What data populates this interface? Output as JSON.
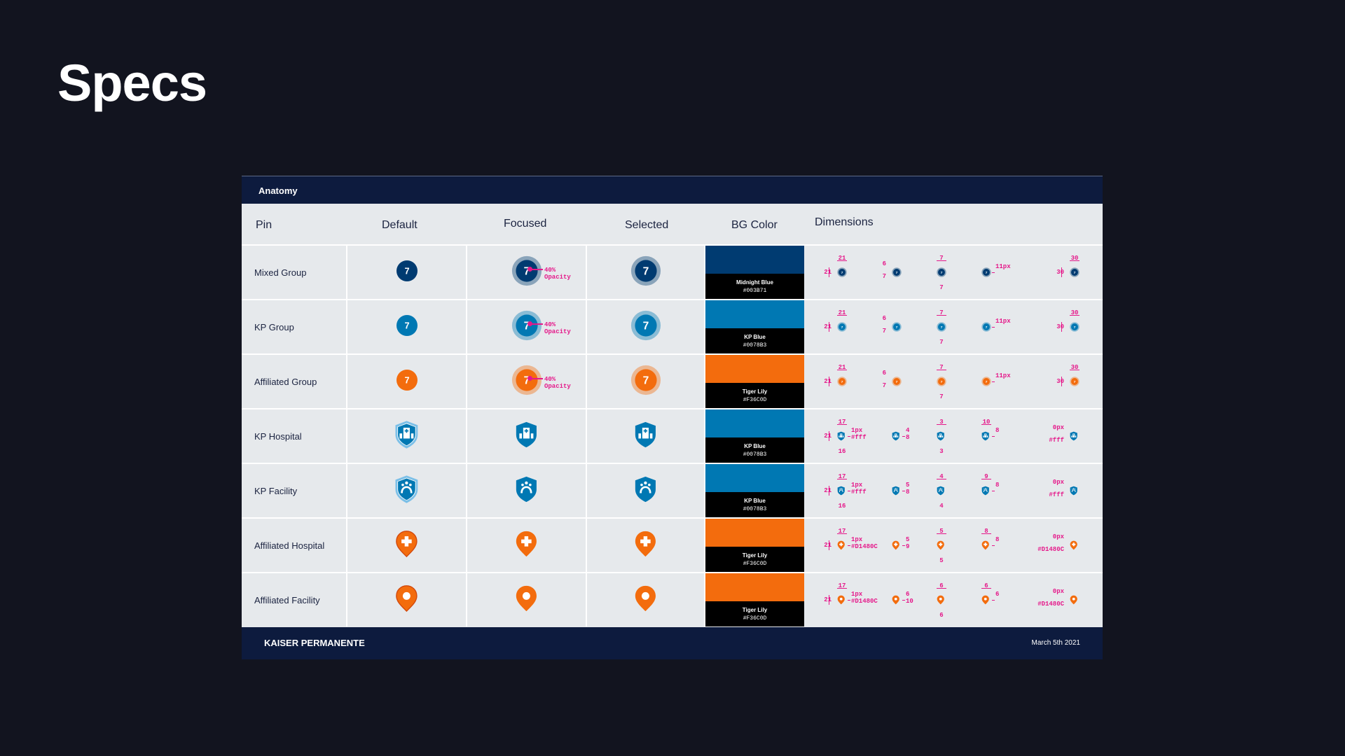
{
  "page_title": "Specs",
  "panel": {
    "header": "Anatomy",
    "columns": [
      "Pin",
      "Default",
      "Focused",
      "Selected",
      "BG Color",
      "Dimensions"
    ],
    "focus_annotation": [
      "40%",
      "Opacity"
    ]
  },
  "footer": {
    "brand": "KAISER PERMANENTE",
    "date": "March 5th 2021"
  },
  "colors": {
    "midnight": "#003B71",
    "kp_blue": "#0078B3",
    "tiger_lily": "#F36C0D",
    "annotation": "#E5198A"
  },
  "rows": [
    {
      "label": "Mixed Group",
      "icon": "group",
      "number": "7",
      "color": "#003B71",
      "swatch_name": "Midnight Blue",
      "swatch_hex": "#003B71",
      "dims": [
        {
          "t": "21",
          "l": "21"
        },
        {
          "l2": "6",
          "l3": "7"
        },
        {
          "t": "7",
          "b": "7"
        },
        {
          "r": "11px"
        },
        {
          "t": "30",
          "l": "30"
        }
      ]
    },
    {
      "label": "KP Group",
      "icon": "group",
      "number": "7",
      "color": "#0078B3",
      "swatch_name": "KP Blue",
      "swatch_hex": "#0078B3",
      "dims": [
        {
          "t": "21",
          "l": "21"
        },
        {
          "l2": "6",
          "l3": "7"
        },
        {
          "t": "7",
          "b": "7"
        },
        {
          "r": "11px"
        },
        {
          "t": "30",
          "l": "30"
        }
      ]
    },
    {
      "label": "Affiliated Group",
      "icon": "group",
      "number": "7",
      "color": "#F36C0D",
      "swatch_name": "Tiger Lily",
      "swatch_hex": "#F36C0D",
      "dims": [
        {
          "t": "21",
          "l": "21"
        },
        {
          "l2": "6",
          "l3": "7"
        },
        {
          "t": "7",
          "b": "7"
        },
        {
          "r": "11px"
        },
        {
          "t": "30",
          "l": "30"
        }
      ]
    },
    {
      "label": "KP Hospital",
      "icon": "shield-hospital",
      "color": "#0078B3",
      "swatch_name": "KP Blue",
      "swatch_hex": "#0078B3",
      "dims": [
        {
          "t": "17",
          "l": "21",
          "r": "1px",
          "r2": "#fff",
          "b": "16"
        },
        {
          "r": "4",
          "r2": "8"
        },
        {
          "t": "3",
          "b": "3"
        },
        {
          "t": "10",
          "r": "8"
        },
        {
          "l2": "0px",
          "l3": "#fff"
        }
      ]
    },
    {
      "label": "KP Facility",
      "icon": "shield-facility",
      "color": "#0078B3",
      "swatch_name": "KP Blue",
      "swatch_hex": "#0078B3",
      "dims": [
        {
          "t": "17",
          "l": "21",
          "r": "1px",
          "r2": "#fff",
          "b": "16"
        },
        {
          "r": "5",
          "r2": "8"
        },
        {
          "t": "4",
          "b": "4"
        },
        {
          "t": "9",
          "r": "8"
        },
        {
          "l2": "0px",
          "l3": "#fff"
        }
      ]
    },
    {
      "label": "Affiliated Hospital",
      "icon": "pin-plus",
      "color": "#F36C0D",
      "swatch_name": "Tiger Lily",
      "swatch_hex": "#F36C0D",
      "dims": [
        {
          "t": "17",
          "l": "21",
          "r": "1px",
          "r2": "#D1480C"
        },
        {
          "r": "5",
          "r2": "9"
        },
        {
          "t": "5",
          "b": "5"
        },
        {
          "t": "8",
          "r": "8"
        },
        {
          "l2": "0px",
          "l3": "#D1480C"
        }
      ]
    },
    {
      "label": "Affiliated Facility",
      "icon": "pin-dot",
      "color": "#F36C0D",
      "swatch_name": "Tiger Lily",
      "swatch_hex": "#F36C0D",
      "dims": [
        {
          "t": "17",
          "l": "21",
          "r": "1px",
          "r2": "#D1480C"
        },
        {
          "r": "6",
          "r2": "10"
        },
        {
          "t": "6",
          "b": "6"
        },
        {
          "t": "6",
          "r": "6"
        },
        {
          "l2": "0px",
          "l3": "#D1480C"
        }
      ]
    }
  ]
}
